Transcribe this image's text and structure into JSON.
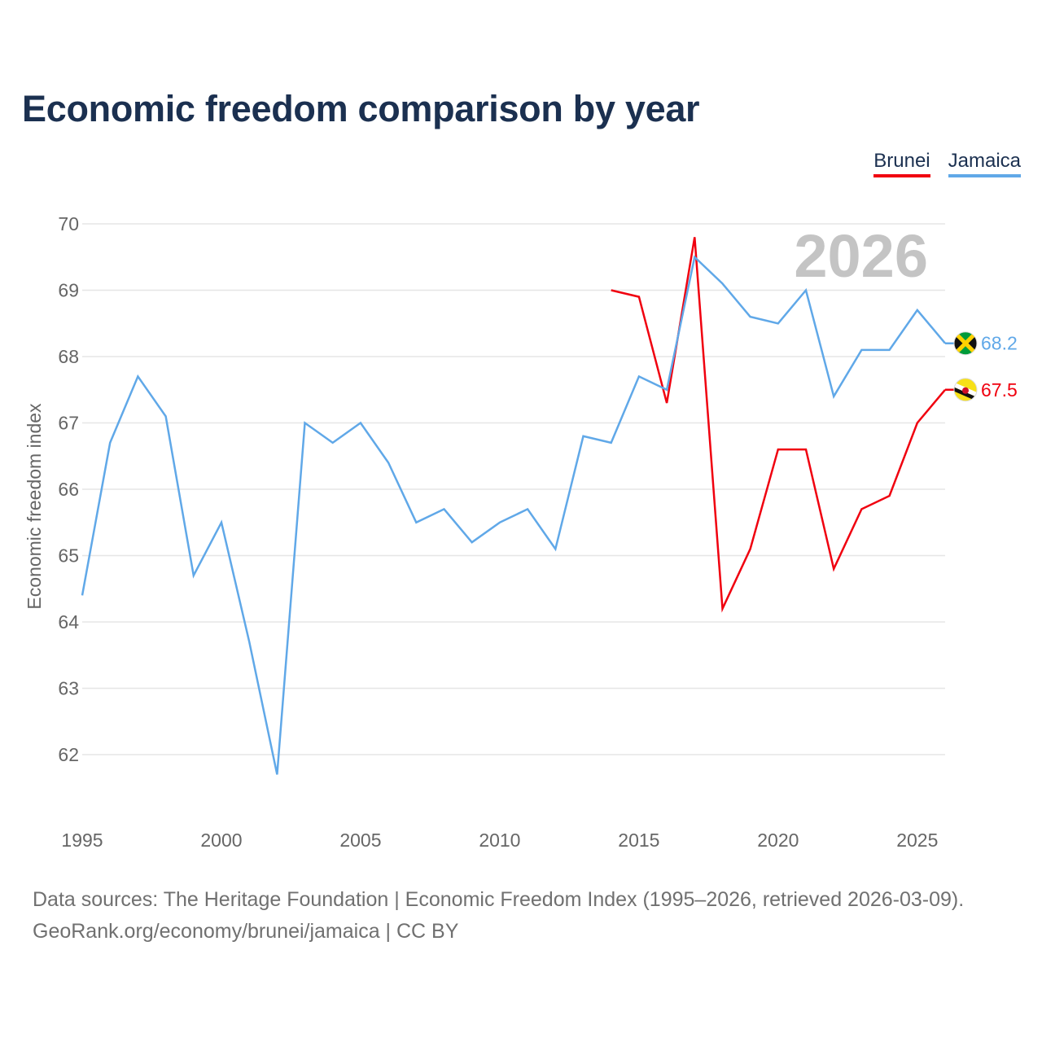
{
  "title": "Economic freedom comparison by year",
  "legend": {
    "brunei": "Brunei",
    "jamaica": "Jamaica"
  },
  "big_year": "2026",
  "footer": {
    "line1": "Data sources: The Heritage Foundation | Economic Freedom Index (1995–2026, retrieved 2026-03-09).",
    "line2": "GeoRank.org/economy/brunei/jamaica | CC BY"
  },
  "chart_data": {
    "type": "line",
    "title": "Economic freedom comparison by year",
    "xlabel": "",
    "ylabel": "Economic freedom index",
    "xlim": [
      1995,
      2026
    ],
    "ylim": [
      61.2,
      70
    ],
    "x_ticks": [
      1995,
      2000,
      2005,
      2010,
      2015,
      2020,
      2025
    ],
    "y_ticks": [
      62,
      63,
      64,
      65,
      66,
      67,
      68,
      69,
      70
    ],
    "grid": true,
    "legend_position": "top-right",
    "series": [
      {
        "name": "Brunei",
        "color": "#f0000f",
        "end_label": "67.5",
        "flag_icon": "brunei-flag-icon",
        "x": [
          2014,
          2015,
          2016,
          2017,
          2018,
          2019,
          2020,
          2021,
          2022,
          2023,
          2024,
          2025,
          2026
        ],
        "values": [
          69.0,
          68.9,
          67.3,
          69.8,
          64.2,
          65.1,
          66.6,
          66.6,
          64.8,
          65.7,
          65.9,
          67.0,
          67.5
        ]
      },
      {
        "name": "Jamaica",
        "color": "#60a8e8",
        "end_label": "68.2",
        "flag_icon": "jamaica-flag-icon",
        "x": [
          1995,
          1996,
          1997,
          1998,
          1999,
          2000,
          2001,
          2002,
          2003,
          2004,
          2005,
          2006,
          2007,
          2008,
          2009,
          2010,
          2011,
          2012,
          2013,
          2014,
          2015,
          2016,
          2017,
          2018,
          2019,
          2020,
          2021,
          2022,
          2023,
          2024,
          2025,
          2026
        ],
        "values": [
          64.4,
          66.7,
          67.7,
          67.1,
          64.7,
          65.5,
          63.7,
          61.7,
          67.0,
          66.7,
          67.0,
          66.4,
          65.5,
          65.7,
          65.2,
          65.5,
          65.7,
          65.1,
          66.8,
          66.7,
          67.7,
          67.5,
          69.5,
          69.1,
          68.6,
          68.5,
          69.0,
          67.4,
          68.1,
          68.1,
          68.7,
          68.2
        ]
      }
    ]
  }
}
